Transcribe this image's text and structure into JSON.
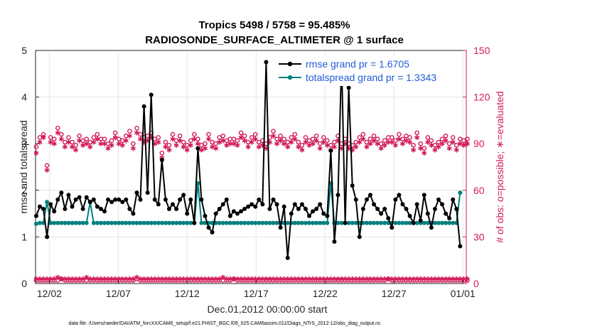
{
  "chart_data": {
    "type": "line",
    "title": "Tropics 5498 / 5758 = 95.485%",
    "subtitle": "RADIOSONDE_SURFACE_ALTIMETER @ 1 surface",
    "xlabel": "Dec.01,2012 00:00:00 start",
    "ylabel_left": "rmse and totalspread",
    "ylabel_right": "# of obs: o=possible; ∗=evaluated",
    "ylim_left": [
      0,
      5
    ],
    "ylim_right": [
      0,
      150
    ],
    "yticks_left": [
      "0",
      "1",
      "2",
      "3",
      "4",
      "5"
    ],
    "yticks_right": [
      "0",
      "30",
      "60",
      "90",
      "120",
      "150"
    ],
    "xlim": [
      0,
      31.25
    ],
    "xticks": [
      {
        "x": 1,
        "label": "12/02"
      },
      {
        "x": 6,
        "label": "12/07"
      },
      {
        "x": 11,
        "label": "12/12"
      },
      {
        "x": 16,
        "label": "12/17"
      },
      {
        "x": 21,
        "label": "12/22"
      },
      {
        "x": 26,
        "label": "12/27"
      },
      {
        "x": 31,
        "label": "01/01"
      }
    ],
    "grid": true,
    "legend_position": "top-right",
    "colors": {
      "rmse": "#000000",
      "spread": "#00807f",
      "obs": "#d21a5a"
    },
    "series": [
      {
        "name": "rmse grand pr = 1.6705",
        "key": "rmse",
        "values": [
          1.45,
          1.65,
          1.6,
          1.0,
          1.7,
          1.55,
          1.8,
          1.95,
          1.6,
          1.9,
          1.65,
          1.8,
          1.85,
          1.6,
          1.85,
          1.75,
          1.8,
          1.65,
          1.6,
          1.55,
          1.8,
          1.75,
          1.8,
          1.8,
          1.75,
          1.8,
          1.6,
          1.5,
          1.95,
          1.8,
          3.8,
          1.95,
          4.05,
          1.8,
          1.7,
          2.65,
          1.8,
          1.6,
          1.7,
          1.6,
          1.8,
          1.9,
          1.5,
          1.8,
          1.3,
          2.9,
          1.8,
          1.45,
          1.2,
          1.1,
          1.5,
          1.6,
          1.7,
          1.8,
          1.45,
          1.55,
          1.5,
          1.55,
          1.6,
          1.65,
          1.7,
          1.65,
          1.8,
          1.7,
          4.75,
          1.6,
          1.8,
          1.7,
          1.2,
          1.65,
          0.55,
          1.5,
          1.7,
          1.6,
          1.7,
          1.6,
          1.45,
          1.55,
          1.6,
          1.7,
          1.5,
          1.45,
          2.85,
          0.9,
          1.9,
          4.8,
          1.3,
          4.2,
          2.1,
          1.8,
          1.0,
          1.6,
          1.8,
          1.9,
          1.7,
          1.6,
          1.5,
          1.6,
          1.4,
          1.2,
          1.8,
          1.9,
          1.7,
          1.6,
          1.45,
          1.3,
          1.7,
          1.35,
          1.9,
          1.5,
          1.2,
          1.6,
          1.8,
          1.7,
          1.5,
          1.4,
          1.8,
          1.6,
          0.8
        ],
        "obs_possible": [
          88,
          94,
          96,
          76,
          94,
          93,
          100,
          96,
          91,
          94,
          91,
          89,
          95,
          92,
          93,
          91,
          94,
          96,
          93,
          93,
          90,
          92,
          97,
          93,
          92,
          95,
          98,
          90,
          100,
          96,
          94,
          95,
          97,
          93,
          94,
          84,
          91,
          89,
          96,
          92,
          95,
          91,
          89,
          92,
          96,
          93,
          89,
          90,
          96,
          91,
          90,
          94,
          95,
          92,
          93,
          93,
          92,
          97,
          95,
          91,
          94,
          96,
          91,
          92,
          90,
          94,
          98,
          93,
          95,
          93,
          91,
          94,
          96,
          91,
          89,
          94,
          92,
          93,
          95,
          90,
          94,
          92,
          89,
          91,
          95,
          90,
          93,
          90,
          89,
          91,
          94,
          96,
          91,
          93,
          95,
          93,
          90,
          92,
          94,
          94,
          92,
          96,
          93,
          95,
          94,
          89,
          97,
          90,
          87,
          94,
          92,
          89,
          91,
          93,
          95,
          90,
          94,
          89,
          93,
          92,
          93
        ],
        "obs_evaluated": [
          84,
          91,
          94,
          73,
          91,
          90,
          97,
          93,
          88,
          91,
          88,
          86,
          92,
          89,
          90,
          88,
          91,
          93,
          90,
          90,
          87,
          89,
          94,
          90,
          89,
          92,
          95,
          87,
          97,
          93,
          91,
          92,
          94,
          90,
          91,
          81,
          88,
          86,
          93,
          89,
          92,
          88,
          86,
          89,
          93,
          90,
          86,
          87,
          93,
          88,
          87,
          91,
          92,
          89,
          90,
          90,
          89,
          94,
          92,
          88,
          91,
          93,
          88,
          89,
          87,
          91,
          95,
          90,
          92,
          90,
          88,
          91,
          93,
          88,
          86,
          91,
          89,
          90,
          92,
          87,
          91,
          89,
          86,
          88,
          92,
          87,
          90,
          87,
          86,
          88,
          91,
          93,
          88,
          90,
          92,
          90,
          87,
          89,
          91,
          91,
          89,
          93,
          90,
          92,
          91,
          86,
          94,
          87,
          84,
          91,
          89,
          86,
          88,
          90,
          92,
          87,
          91,
          86,
          90,
          89,
          90
        ]
      },
      {
        "name": "totalspread grand pr = 1.3343",
        "key": "spread",
        "values": [
          1.28,
          1.3,
          1.3,
          1.75,
          1.3,
          1.3,
          1.3,
          1.3,
          1.3,
          1.3,
          1.3,
          1.3,
          1.3,
          1.3,
          1.3,
          1.75,
          1.3,
          1.3,
          1.3,
          1.3,
          1.3,
          1.3,
          1.3,
          1.3,
          1.3,
          1.3,
          1.3,
          1.3,
          1.3,
          1.3,
          1.3,
          1.3,
          1.3,
          1.3,
          1.3,
          1.3,
          1.3,
          1.3,
          1.3,
          1.3,
          1.3,
          1.3,
          1.3,
          1.3,
          1.3,
          2.15,
          1.3,
          1.3,
          1.3,
          1.3,
          1.3,
          1.3,
          1.3,
          1.3,
          1.3,
          1.3,
          1.3,
          1.3,
          1.3,
          1.3,
          1.3,
          1.3,
          1.3,
          1.3,
          1.3,
          1.3,
          1.3,
          1.3,
          1.3,
          1.3,
          1.3,
          1.3,
          1.3,
          1.3,
          1.3,
          1.3,
          1.3,
          1.3,
          1.3,
          1.3,
          1.3,
          1.3,
          2.15,
          1.3,
          1.3,
          1.3,
          1.3,
          1.3,
          1.3,
          1.3,
          1.3,
          1.3,
          1.3,
          1.3,
          1.3,
          1.3,
          1.3,
          1.3,
          1.3,
          1.3,
          1.3,
          1.3,
          1.3,
          1.3,
          1.3,
          1.3,
          1.3,
          1.3,
          1.3,
          1.3,
          1.3,
          1.3,
          1.3,
          1.3,
          1.3,
          1.3,
          1.3,
          1.3,
          1.95
        ],
        "obs_possible": [],
        "obs_evaluated": []
      }
    ],
    "obs_bottom_possible": [
      2,
      2,
      2,
      2,
      2,
      2,
      2,
      3,
      2,
      2,
      2,
      2,
      2,
      2,
      2,
      2,
      2,
      2,
      2,
      2,
      2,
      2,
      2,
      2,
      2,
      2,
      2,
      2,
      3,
      2,
      2,
      2,
      2,
      2,
      2,
      2,
      2,
      2,
      2,
      2,
      2,
      2,
      2,
      2,
      2,
      2,
      2,
      2,
      2,
      2,
      2,
      2,
      2,
      2,
      2,
      3,
      2,
      2,
      2,
      2,
      2,
      2,
      2,
      2,
      2,
      2,
      2,
      2,
      2,
      2,
      2,
      2,
      2,
      2,
      2,
      2,
      2,
      2,
      2,
      2,
      2,
      2,
      2,
      2,
      2,
      2,
      2,
      2,
      2,
      2,
      2,
      2,
      2,
      2,
      2,
      2,
      2,
      2,
      3,
      2,
      2,
      2,
      2,
      2,
      2,
      2,
      2,
      2,
      2,
      2,
      2,
      2,
      2,
      2,
      2,
      2,
      2,
      2,
      2,
      2,
      2
    ],
    "obs_bottom_evaluated": [
      3,
      3,
      3,
      3,
      3,
      3,
      4,
      3,
      3,
      3,
      3,
      3,
      3,
      3,
      4,
      3,
      3,
      3,
      3,
      3,
      3,
      3,
      3,
      3,
      3,
      3,
      3,
      3,
      4,
      3,
      3,
      3,
      3,
      3,
      3,
      3,
      3,
      3,
      3,
      3,
      3,
      3,
      3,
      3,
      3,
      3,
      3,
      3,
      3,
      3,
      3,
      3,
      4,
      3,
      3,
      3,
      3,
      3,
      3,
      3,
      3,
      3,
      3,
      3,
      3,
      3,
      3,
      3,
      3,
      3,
      3,
      3,
      3,
      3,
      3,
      3,
      3,
      3,
      3,
      3,
      3,
      3,
      3,
      3,
      3,
      3,
      3,
      3,
      3,
      3,
      3,
      3,
      3,
      3,
      3,
      3,
      3,
      3,
      3,
      3,
      3,
      3,
      3,
      3,
      3,
      3,
      3,
      3,
      3,
      3,
      3,
      3,
      3,
      3,
      3,
      3,
      3,
      3,
      3,
      3,
      3
    ]
  },
  "footer": "data file: /Users/raeder/DAI/ATM_forcXX/CAM6_setup/f.e21.FHIST_BGC.f09_025.CAM6assim.011/Diags_NTrS_2012-12/obs_diag_output.nc"
}
